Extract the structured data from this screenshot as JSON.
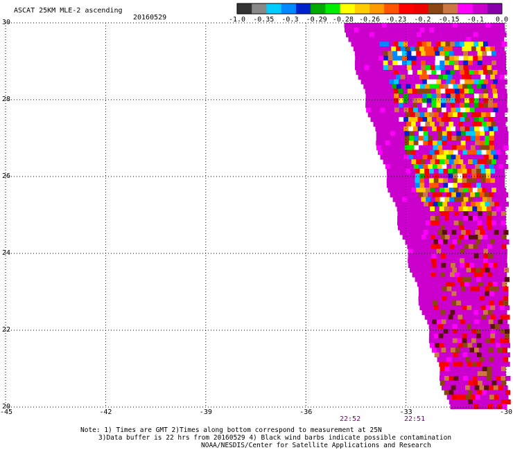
{
  "header": {
    "title": "ASCAT 25KM MLE-2 ascending",
    "date": "20160529"
  },
  "colorbar": {
    "labels": [
      "-1.0",
      "-0.35",
      "-0.3",
      "-0.29",
      "-0.28",
      "-0.26",
      "-0.23",
      "-0.2",
      "-0.15",
      "-0.1",
      "0.0"
    ],
    "colors": [
      "#333333",
      "#888888",
      "#00ccff",
      "#0088ff",
      "#0022cc",
      "#00aa00",
      "#00ee00",
      "#ffff00",
      "#ffcc00",
      "#ff9900",
      "#ff5500",
      "#ff0000",
      "#ee0000",
      "#8b4513",
      "#cc7744",
      "#ff00ff",
      "#cc00cc",
      "#8800aa"
    ]
  },
  "map": {
    "lon_ticks": [
      "-45",
      "-42",
      "-39",
      "-36",
      "-33",
      "-30"
    ],
    "lat_ticks": [
      "30",
      "28",
      "26",
      "24",
      "22",
      "20"
    ],
    "lon_range": [
      -45,
      -30
    ],
    "lat_range": [
      20,
      30
    ],
    "grid": true
  },
  "times": [
    {
      "label": "22:52",
      "color": "#770077"
    },
    {
      "label": "22:51",
      "color": "#770077"
    }
  ],
  "notes": {
    "line1": "Note: 1) Times are GMT 2)Times along bottom correspond to measurement at 25N",
    "line2": "3)Data buffer is 22 hrs from 20160529 4) Black wind barbs indicate possible contamination",
    "line3": "NOAA/NESDIS/Center for Satellite Applications and Research"
  }
}
